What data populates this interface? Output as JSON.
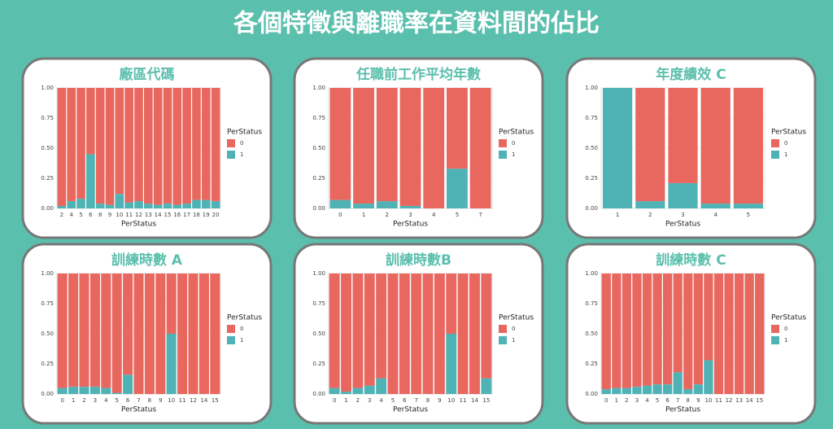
{
  "title": "各個特徵與離職率在資料間的佔比",
  "chart_data": [
    {
      "type": "bar",
      "title": "廠區代碼",
      "xlabel": "PerStatus",
      "legend_title": "PerStatus",
      "categories": [
        "2",
        "4",
        "5",
        "6",
        "8",
        "9",
        "10",
        "11",
        "12",
        "13",
        "14",
        "15",
        "16",
        "17",
        "18",
        "19",
        "20"
      ],
      "series": [
        {
          "name": "0",
          "color": "#e8675f",
          "values": [
            0.98,
            0.94,
            0.92,
            0.55,
            0.96,
            0.97,
            0.88,
            0.95,
            0.94,
            0.96,
            0.97,
            0.96,
            0.97,
            0.96,
            0.93,
            0.93,
            0.94
          ]
        },
        {
          "name": "1",
          "color": "#4fb3b6",
          "values": [
            0.02,
            0.06,
            0.08,
            0.45,
            0.04,
            0.03,
            0.12,
            0.05,
            0.06,
            0.04,
            0.03,
            0.04,
            0.03,
            0.04,
            0.07,
            0.07,
            0.06
          ]
        }
      ],
      "ylim": [
        0,
        1
      ],
      "yticks": [
        {
          "value": 0,
          "label": "0.00"
        },
        {
          "value": 0.25,
          "label": "0.25"
        },
        {
          "value": 0.5,
          "label": "0.50"
        },
        {
          "value": 0.75,
          "label": "0.75"
        },
        {
          "value": 1,
          "label": "1.00"
        }
      ],
      "grid": true
    },
    {
      "type": "bar",
      "title": "任職前工作平均年數",
      "xlabel": "PerStatus",
      "legend_title": "PerStatus",
      "categories": [
        "0",
        "1",
        "2",
        "3",
        "4",
        "5",
        "7"
      ],
      "series": [
        {
          "name": "0",
          "color": "#e8675f",
          "values": [
            0.93,
            0.96,
            0.94,
            0.98,
            1,
            0.67,
            1
          ]
        },
        {
          "name": "1",
          "color": "#4fb3b6",
          "values": [
            0.07,
            0.04,
            0.06,
            0.02,
            0,
            0.33,
            0
          ]
        }
      ],
      "ylim": [
        0,
        1
      ],
      "yticks": [
        {
          "value": 0,
          "label": "0.00"
        },
        {
          "value": 0.25,
          "label": "0.25"
        },
        {
          "value": 0.5,
          "label": "0.50"
        },
        {
          "value": 0.75,
          "label": "0.75"
        },
        {
          "value": 1,
          "label": "1.00"
        }
      ],
      "grid": true
    },
    {
      "type": "bar",
      "title": "年度績效 C",
      "xlabel": "PerStatus",
      "legend_title": "PerStatus",
      "categories": [
        "1",
        "2",
        "3",
        "4",
        "5"
      ],
      "series": [
        {
          "name": "0",
          "color": "#e8675f",
          "values": [
            0,
            0.94,
            0.79,
            0.96,
            0.96
          ]
        },
        {
          "name": "1",
          "color": "#4fb3b6",
          "values": [
            1,
            0.06,
            0.21,
            0.04,
            0.04
          ]
        }
      ],
      "ylim": [
        0,
        1
      ],
      "yticks": [
        {
          "value": 0,
          "label": "0.00"
        },
        {
          "value": 0.25,
          "label": "0.25"
        },
        {
          "value": 0.5,
          "label": "0.50"
        },
        {
          "value": 0.75,
          "label": "0.75"
        },
        {
          "value": 1,
          "label": "1.00"
        }
      ],
      "grid": true
    },
    {
      "type": "bar",
      "title": "訓練時數 A",
      "xlabel": "PerStatus",
      "legend_title": "PerStatus",
      "categories": [
        "0",
        "1",
        "2",
        "3",
        "4",
        "5",
        "6",
        "7",
        "8",
        "9",
        "10",
        "11",
        "12",
        "14",
        "15"
      ],
      "series": [
        {
          "name": "0",
          "color": "#e8675f",
          "values": [
            0.95,
            0.94,
            0.94,
            0.94,
            0.95,
            0.99,
            0.84,
            1,
            1,
            1,
            0.5,
            1,
            1,
            1,
            1
          ]
        },
        {
          "name": "1",
          "color": "#4fb3b6",
          "values": [
            0.05,
            0.06,
            0.06,
            0.06,
            0.05,
            0.01,
            0.16,
            0,
            0,
            0,
            0.5,
            0,
            0,
            0,
            0
          ]
        }
      ],
      "ylim": [
        0,
        1
      ],
      "yticks": [
        {
          "value": 0,
          "label": "0.00"
        },
        {
          "value": 0.25,
          "label": "0.25"
        },
        {
          "value": 0.5,
          "label": "0.50"
        },
        {
          "value": 0.75,
          "label": "0.75"
        },
        {
          "value": 1,
          "label": "1.00"
        }
      ],
      "grid": true
    },
    {
      "type": "bar",
      "title": "訓練時數B",
      "xlabel": "PerStatus",
      "legend_title": "PerStatus",
      "categories": [
        "0",
        "1",
        "2",
        "3",
        "4",
        "5",
        "6",
        "7",
        "8",
        "9",
        "10",
        "11",
        "14",
        "15"
      ],
      "series": [
        {
          "name": "0",
          "color": "#e8675f",
          "values": [
            0.95,
            0.98,
            0.95,
            0.93,
            0.87,
            1,
            1,
            1,
            1,
            1,
            0.5,
            1,
            1,
            0.87
          ]
        },
        {
          "name": "1",
          "color": "#4fb3b6",
          "values": [
            0.05,
            0.02,
            0.05,
            0.07,
            0.13,
            0,
            0,
            0,
            0,
            0,
            0.5,
            0,
            0,
            0.13
          ]
        }
      ],
      "ylim": [
        0,
        1
      ],
      "yticks": [
        {
          "value": 0,
          "label": "0.00"
        },
        {
          "value": 0.25,
          "label": "0.25"
        },
        {
          "value": 0.5,
          "label": "0.50"
        },
        {
          "value": 0.75,
          "label": "0.75"
        },
        {
          "value": 1,
          "label": "1.00"
        }
      ],
      "grid": true
    },
    {
      "type": "bar",
      "title": "訓練時數 C",
      "xlabel": "PerStatus",
      "legend_title": "PerStatus",
      "categories": [
        "0",
        "1",
        "2",
        "3",
        "4",
        "5",
        "6",
        "7",
        "8",
        "9",
        "10",
        "11",
        "12",
        "13",
        "14",
        "15"
      ],
      "series": [
        {
          "name": "0",
          "color": "#e8675f",
          "values": [
            0.96,
            0.95,
            0.95,
            0.94,
            0.93,
            0.92,
            0.92,
            0.82,
            0.96,
            0.92,
            0.72,
            1,
            1,
            1,
            1,
            1
          ]
        },
        {
          "name": "1",
          "color": "#4fb3b6",
          "values": [
            0.04,
            0.05,
            0.05,
            0.06,
            0.07,
            0.08,
            0.08,
            0.18,
            0.04,
            0.08,
            0.28,
            0,
            0,
            0,
            0,
            0
          ]
        }
      ],
      "ylim": [
        0,
        1
      ],
      "yticks": [
        {
          "value": 0,
          "label": "0.00"
        },
        {
          "value": 0.25,
          "label": "0.25"
        },
        {
          "value": 0.5,
          "label": "0.50"
        },
        {
          "value": 0.75,
          "label": "0.75"
        },
        {
          "value": 1,
          "label": "1.00"
        }
      ],
      "grid": true
    }
  ]
}
